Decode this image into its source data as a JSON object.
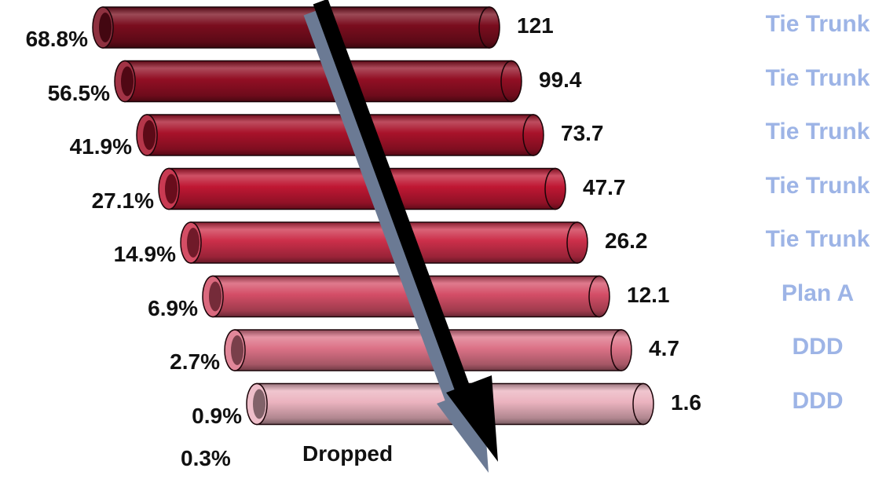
{
  "rows": [
    {
      "percent": "68.8%",
      "value": "121",
      "route": "Tie Trunk",
      "color": "#7a0d1e"
    },
    {
      "percent": "56.5%",
      "value": "99.4",
      "route": "Tie Trunk",
      "color": "#920f24"
    },
    {
      "percent": "41.9%",
      "value": "73.7",
      "route": "Tie Trunk",
      "color": "#a8122a"
    },
    {
      "percent": "27.1%",
      "value": "47.7",
      "route": "Tie Trunk",
      "color": "#bf1733"
    },
    {
      "percent": "14.9%",
      "value": "26.2",
      "route": "Tie Trunk",
      "color": "#cc2f4a"
    },
    {
      "percent": "6.9%",
      "value": "12.1",
      "route": "Plan A",
      "color": "#d44e67"
    },
    {
      "percent": "2.7%",
      "value": "4.7",
      "route": "DDD",
      "color": "#dc7287"
    },
    {
      "percent": "0.9%",
      "value": "1.6",
      "route": "DDD",
      "color": "#ebb3bf"
    }
  ],
  "footer": {
    "percent": "0.3%",
    "label": "Dropped"
  },
  "colors": {
    "route_text": "#9db4e6",
    "arrow": "#000000",
    "arrow_shadow": "#6b7a94"
  }
}
